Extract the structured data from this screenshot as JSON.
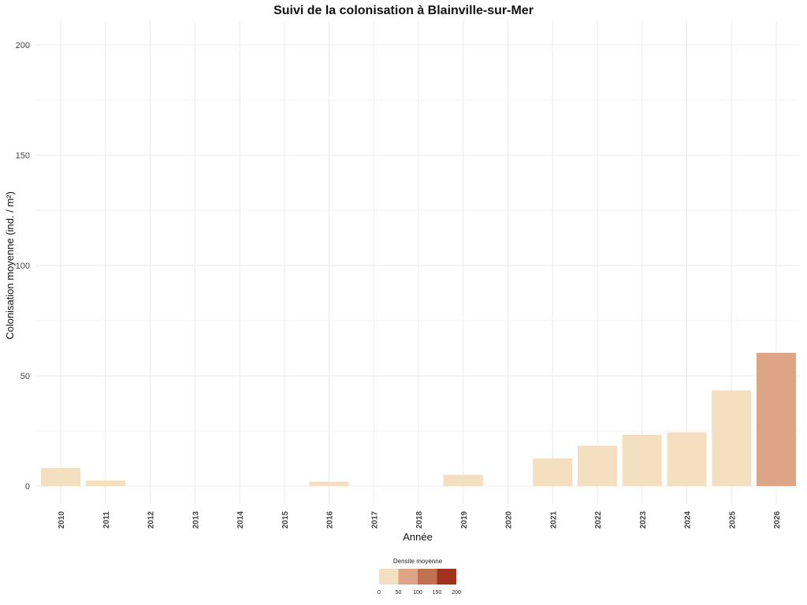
{
  "chart_data": {
    "type": "bar",
    "title": "Suivi de la colonisation à Blainville-sur-Mer",
    "xlabel": "Année",
    "ylabel": "Colonisation moyenne (ind. / m²)",
    "ylim": [
      0,
      200
    ],
    "yticks": [
      0,
      50,
      100,
      150,
      200
    ],
    "grid": true,
    "categories": [
      "2010",
      "2011",
      "2012",
      "2013",
      "2014",
      "2015",
      "2016",
      "2017",
      "2018",
      "2019",
      "2020",
      "2021",
      "2022",
      "2023",
      "2024",
      "2025",
      "2026"
    ],
    "values": [
      8.2,
      2.5,
      0,
      0,
      0,
      0,
      2,
      0,
      0,
      5.1,
      0,
      12.5,
      18.3,
      23.2,
      24.4,
      43.4,
      60.4
    ],
    "legend": {
      "title": "Densite moyenne",
      "position": "bottom",
      "breaks": [
        0,
        50,
        100,
        150,
        200
      ],
      "break_labels": [
        "0",
        "50",
        "100",
        "150",
        "200"
      ],
      "colors": [
        "#F5DFC1",
        "#DDA585",
        "#C27150",
        "#A0321F"
      ]
    }
  }
}
